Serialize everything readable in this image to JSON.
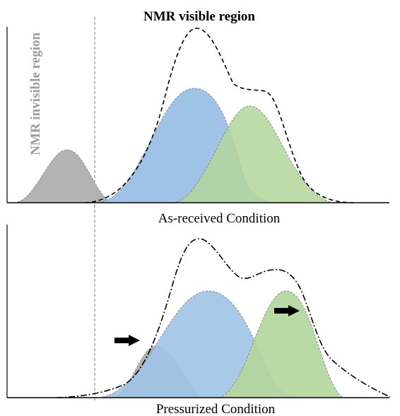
{
  "header": {
    "title": "NMR visible region"
  },
  "left_label": {
    "text": "NMR invisible region",
    "color": "#9b9b9b"
  },
  "top_panel": {
    "caption": "As-received Condition"
  },
  "bottom_panel": {
    "caption": "Pressurized Condition"
  },
  "colors": {
    "gray_peak": "#b3b3b3",
    "blue_peak": "#9fc3e6",
    "green_peak": "#b3d69b",
    "envelope": "#000000",
    "axis": "#000000"
  },
  "icons": {
    "arrow": "right-arrow-icon"
  }
}
